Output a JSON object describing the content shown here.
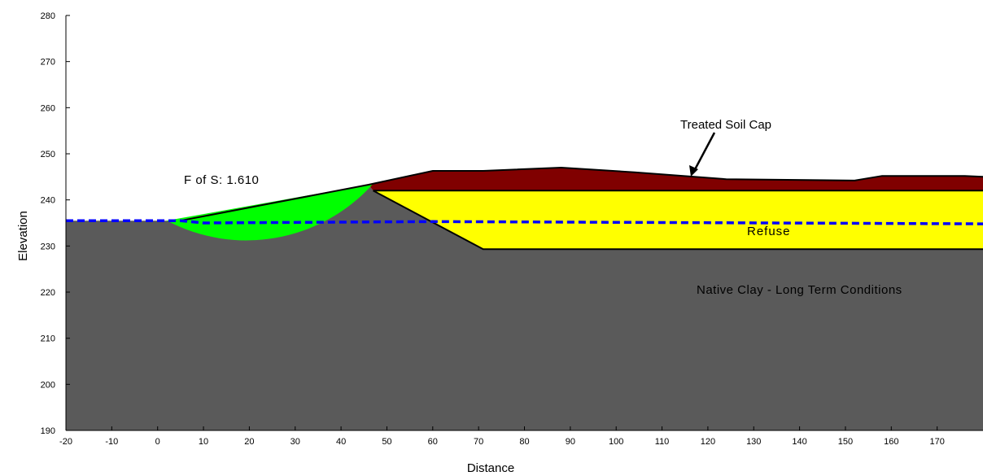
{
  "chart_data": {
    "type": "cross-section",
    "xlabel": "Distance",
    "ylabel": "Elevation",
    "xlim": [
      -20,
      180
    ],
    "ylim": [
      190,
      280
    ],
    "x_ticks": [
      -20,
      -10,
      0,
      10,
      20,
      30,
      40,
      50,
      60,
      70,
      80,
      90,
      100,
      110,
      120,
      130,
      140,
      150,
      160,
      170
    ],
    "y_ticks": [
      190,
      200,
      210,
      220,
      230,
      240,
      250,
      260,
      270,
      280
    ],
    "layers": [
      {
        "name": "Native Clay - Long Term Conditions",
        "color": "#5a5a5a",
        "boundary": [
          [
            -20,
            235.5
          ],
          [
            5,
            235.5
          ],
          [
            46,
            243.3
          ],
          [
            47,
            242
          ],
          [
            71,
            229.3
          ],
          [
            180,
            229.3
          ],
          [
            180,
            190
          ],
          [
            -20,
            190
          ]
        ]
      },
      {
        "name": "Refuse",
        "color": "#ffff00",
        "boundary": [
          [
            47,
            242
          ],
          [
            180,
            242
          ],
          [
            180,
            229.3
          ],
          [
            71,
            229.3
          ]
        ]
      },
      {
        "name": "Treated Soil Cap",
        "color": "#800000",
        "boundary": [
          [
            46,
            243.3
          ],
          [
            60,
            246.3
          ],
          [
            71,
            246.3
          ],
          [
            88,
            247
          ],
          [
            104,
            246
          ],
          [
            124,
            244.5
          ],
          [
            152,
            244.2
          ],
          [
            158,
            245.2
          ],
          [
            176,
            245.2
          ],
          [
            180,
            245
          ],
          [
            180,
            242
          ],
          [
            47,
            242
          ]
        ]
      }
    ],
    "ground_surface": [
      [
        -20,
        235.5
      ],
      [
        5,
        235.5
      ],
      [
        46,
        243.3
      ],
      [
        60,
        246.3
      ],
      [
        71,
        246.3
      ],
      [
        88,
        247
      ],
      [
        104,
        246
      ],
      [
        124,
        244.5
      ],
      [
        152,
        244.2
      ],
      [
        158,
        245.2
      ],
      [
        176,
        245.2
      ],
      [
        180,
        245
      ]
    ],
    "water_table": {
      "color": "#0000ff",
      "line_style": "dashed",
      "points": [
        [
          -20,
          235.5
        ],
        [
          5,
          235.5
        ],
        [
          10,
          235
        ],
        [
          60,
          235.3
        ],
        [
          180,
          234.8
        ]
      ]
    },
    "slip_surface": {
      "color": "#00ff00",
      "entry": [
        2,
        235.5
      ],
      "exit": [
        47,
        243.5
      ],
      "center": [
        21,
        265.9
      ],
      "radius": 37.1
    },
    "annotations": {
      "factor_of_safety": "F of S: 1.610",
      "cap_label": "Treated Soil Cap",
      "refuse_label": "Refuse",
      "clay_label": "Native Clay - Long Term Conditions"
    }
  }
}
